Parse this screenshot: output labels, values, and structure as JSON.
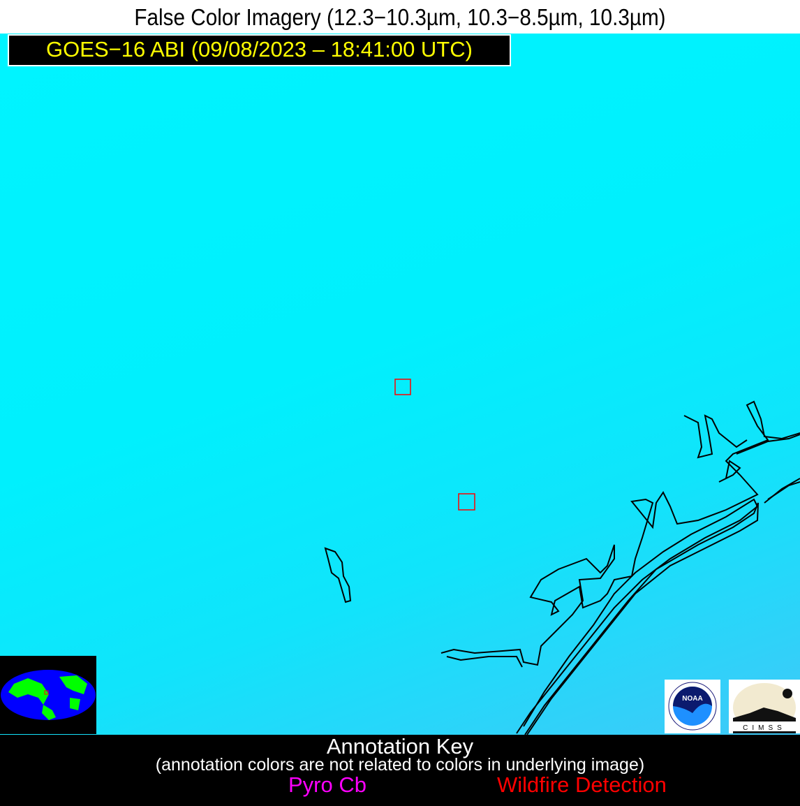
{
  "header": {
    "title": "False Color Imagery (12.3−10.3µm, 10.3−8.5µm, 10.3µm)",
    "subtitle": "GOES−16 ABI (09/08/2023 – 18:41:00 UTC)"
  },
  "map": {
    "background_color": "#00f2fe",
    "coastline_color": "#000000",
    "detection_box_color": "#ff0000",
    "detections": 2
  },
  "logos": {
    "noaa": {
      "label": "NOAA",
      "ring_text": "NATIONAL OCEANIC AND ATMOSPHERIC ADMINISTRATION · U.S. DEPARTMENT OF COMMERCE"
    },
    "cimss": {
      "label": "CIMSS"
    }
  },
  "key": {
    "title": "Annotation Key",
    "note": "(annotation colors are not related to colors in underlying image)",
    "pyro_cb": {
      "label": "Pyro Cb",
      "color": "#ff00ff"
    },
    "wildfire": {
      "label": "Wildfire Detection",
      "color": "#ff0000"
    }
  }
}
